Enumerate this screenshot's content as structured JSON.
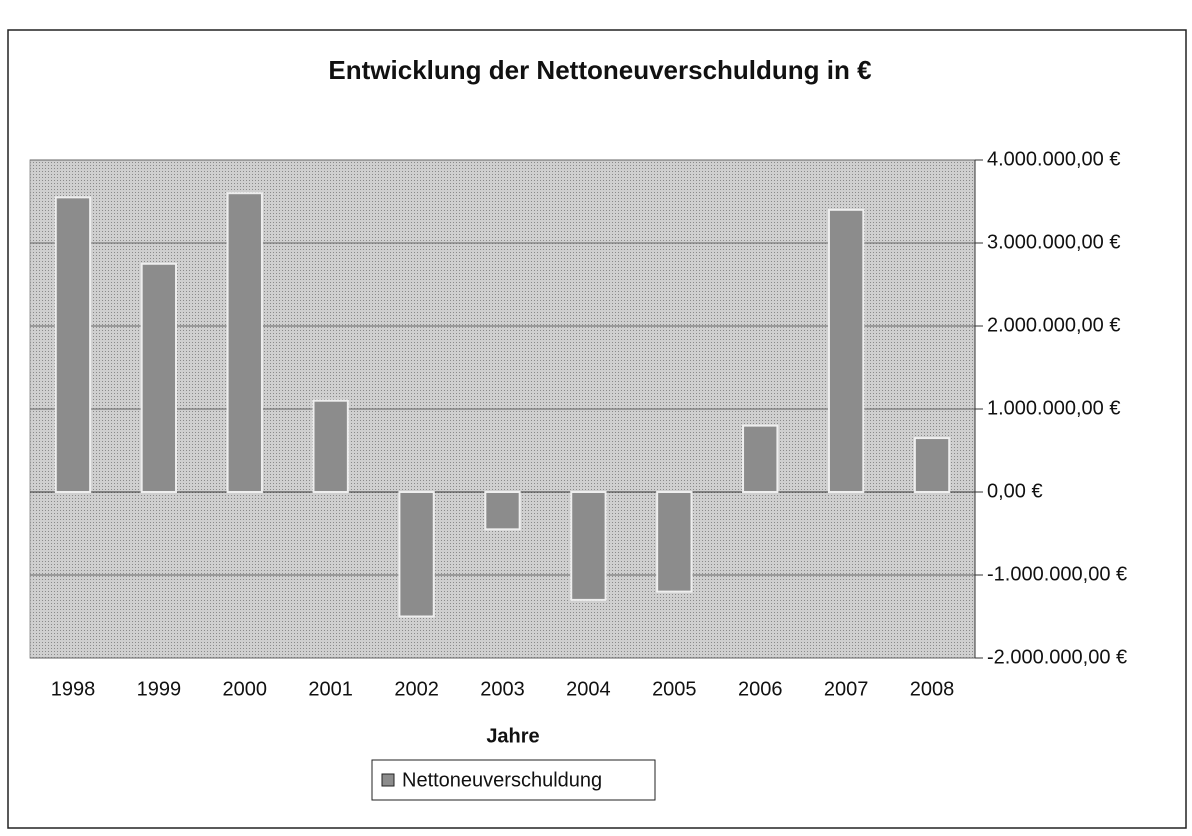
{
  "chart_data": {
    "type": "bar",
    "title": "Entwicklung der Nettoneuverschuldung in €",
    "x_label": "Jahre",
    "categories": [
      "1998",
      "1999",
      "2000",
      "2001",
      "2002",
      "2003",
      "2004",
      "2005",
      "2006",
      "2007",
      "2008"
    ],
    "series": [
      {
        "name": "Nettoneuverschuldung",
        "color": "#8c8c8c",
        "values": [
          3550000,
          2750000,
          3600000,
          1100000,
          -1500000,
          -450000,
          -1300000,
          -1200000,
          800000,
          3400000,
          650000
        ]
      }
    ],
    "ylim": [
      -2000000,
      4000000
    ],
    "yticks": [
      {
        "value": 4000000,
        "label": "4.000.000,00 €"
      },
      {
        "value": 3000000,
        "label": "3.000.000,00 €"
      },
      {
        "value": 2000000,
        "label": "2.000.000,00 €"
      },
      {
        "value": 1000000,
        "label": "1.000.000,00 €"
      },
      {
        "value": 0,
        "label": "0,00 €"
      },
      {
        "value": -1000000,
        "label": "-1.000.000,00 €"
      },
      {
        "value": -2000000,
        "label": "-2.000.000,00 €"
      }
    ],
    "grid": true,
    "legend": "bottom"
  }
}
